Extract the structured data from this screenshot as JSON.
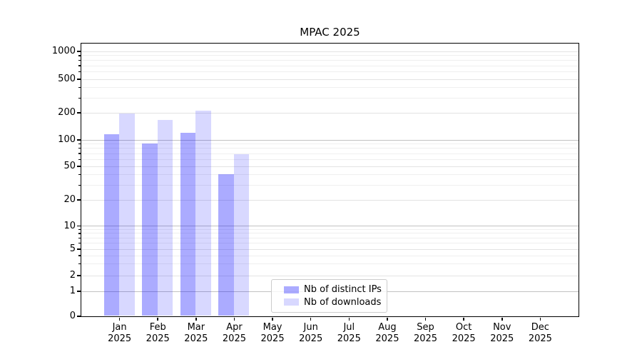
{
  "title": "MPAC 2025",
  "chart_data": {
    "type": "bar",
    "title": "MPAC 2025",
    "x_months": [
      "Jan",
      "Feb",
      "Mar",
      "Apr",
      "May",
      "Jun",
      "Jul",
      "Aug",
      "Sep",
      "Oct",
      "Nov",
      "Dec"
    ],
    "x_year": "2025",
    "y_scale": "symlog",
    "y_ticks": [
      0,
      1,
      2,
      5,
      10,
      20,
      50,
      100,
      200,
      500,
      1000
    ],
    "ylim": [
      0,
      1000
    ],
    "grid": true,
    "legend_position": "bottom-center",
    "series": [
      {
        "name": "Nb of distinct IPs",
        "color": "rgba(10, 10, 255, 0.34)",
        "color_hex_on_white": "#aaaaf6",
        "values": [
          115,
          90,
          120,
          40,
          0,
          0,
          0,
          0,
          0,
          0,
          0,
          0
        ]
      },
      {
        "name": "Nb of downloads",
        "color": "rgba(10, 10, 255, 0.16)",
        "color_hex_on_white": "#d8d8f9",
        "values": [
          195,
          165,
          210,
          68,
          0,
          0,
          0,
          0,
          0,
          0,
          0,
          0
        ]
      }
    ],
    "grid_colors": {
      "decade": "#c2c2c2",
      "labeled": "#e3e3e3",
      "minor": "#efefef"
    }
  }
}
